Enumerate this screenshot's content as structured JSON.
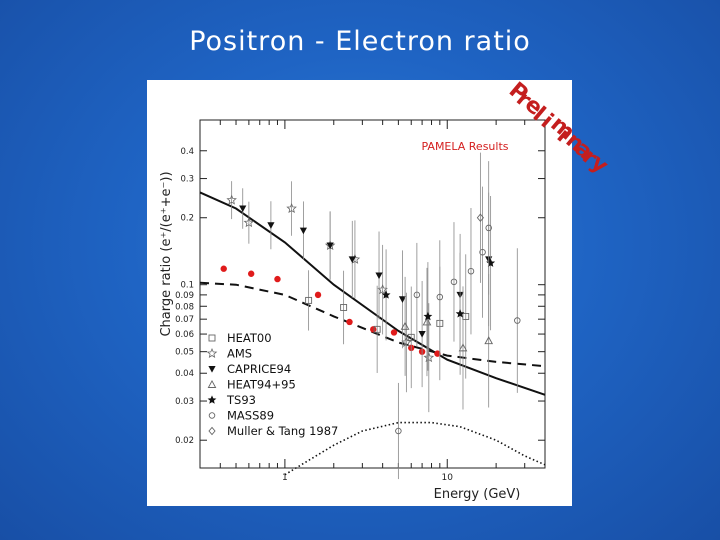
{
  "slide": {
    "title": "Positron - Electron ratio",
    "stamp_text": "Preliminary",
    "stamp_color": "#c41e1e",
    "background_color": "#1f64c4"
  },
  "chart_data": {
    "type": "scatter",
    "title": "PAMELA Results",
    "title_color": "#d42020",
    "xlabel": "Energy (GeV)",
    "ylabel": "Charge ratio (e⁺/(e⁺+e⁻))",
    "xscale": "log",
    "yscale": "log",
    "xlim": [
      0.3,
      40
    ],
    "ylim": [
      0.015,
      0.55
    ],
    "x_ticks": [
      {
        "value": 1,
        "label": "1"
      },
      {
        "value": 10,
        "label": "10"
      }
    ],
    "y_ticks": [
      {
        "value": 0.02,
        "label": "0.02"
      },
      {
        "value": 0.03,
        "label": "0.03"
      },
      {
        "value": 0.04,
        "label": "0.04"
      },
      {
        "value": 0.05,
        "label": "0.05"
      },
      {
        "value": 0.06,
        "label": "0.06"
      },
      {
        "value": 0.07,
        "label": "0.07"
      },
      {
        "value": 0.08,
        "label": "0.08"
      },
      {
        "value": 0.09,
        "label": "0.09"
      },
      {
        "value": 0.1,
        "label": "0.1"
      },
      {
        "value": 0.2,
        "label": "0.2"
      },
      {
        "value": 0.3,
        "label": "0.3"
      },
      {
        "value": 0.4,
        "label": "0.4"
      }
    ],
    "grid": false,
    "legend_position": "bottom-left",
    "series": [
      {
        "name": "PAMELA",
        "marker": "dot",
        "color": "#e01b1b",
        "x": [
          0.42,
          0.62,
          0.9,
          1.6,
          2.5,
          3.5,
          4.7,
          6.0,
          7.0,
          8.7
        ],
        "y": [
          0.118,
          0.112,
          0.106,
          0.09,
          0.068,
          0.063,
          0.061,
          0.052,
          0.05,
          0.049
        ]
      },
      {
        "name": "HEAT00",
        "marker": "square",
        "color": "#666666",
        "x": [
          1.4,
          2.3,
          3.7,
          6.0,
          9.0,
          13.0
        ],
        "y": [
          0.085,
          0.079,
          0.063,
          0.058,
          0.067,
          0.072
        ]
      },
      {
        "name": "AMS",
        "marker": "star-open",
        "color": "#666666",
        "x": [
          0.47,
          0.6,
          1.1,
          1.9,
          2.7,
          4.0,
          5.6,
          7.7
        ],
        "y": [
          0.24,
          0.19,
          0.22,
          0.15,
          0.13,
          0.095,
          0.055,
          0.047
        ]
      },
      {
        "name": "CAPRICE94",
        "marker": "triangle-down",
        "color": "#111111",
        "x": [
          0.55,
          0.82,
          1.3,
          1.9,
          2.6,
          3.8,
          5.3,
          7.0,
          12.0,
          18.0
        ],
        "y": [
          0.22,
          0.185,
          0.175,
          0.15,
          0.13,
          0.11,
          0.086,
          0.06,
          0.09,
          0.13
        ]
      },
      {
        "name": "HEAT94+95",
        "marker": "triangle-up",
        "color": "#666666",
        "x": [
          5.5,
          7.5,
          12.5,
          18.0
        ],
        "y": [
          0.065,
          0.068,
          0.052,
          0.056
        ]
      },
      {
        "name": "TS93",
        "marker": "star",
        "color": "#111111",
        "x": [
          4.2,
          7.6,
          12.0,
          18.5
        ],
        "y": [
          0.09,
          0.072,
          0.074,
          0.125
        ]
      },
      {
        "name": "MASS89",
        "marker": "circle-open",
        "color": "#666666",
        "x": [
          5.0,
          6.5,
          9.0,
          11.0,
          14.0,
          16.5,
          18.0,
          27.0
        ],
        "y": [
          0.022,
          0.09,
          0.088,
          0.103,
          0.115,
          0.14,
          0.18,
          0.069
        ]
      },
      {
        "name": "Muller & Tang 1987",
        "marker": "diamond-open",
        "color": "#666666",
        "x": [
          16.0
        ],
        "y": [
          0.2
        ]
      }
    ],
    "models": [
      {
        "name": "solid",
        "style": "solid",
        "x": [
          0.3,
          0.5,
          1,
          2,
          5,
          10,
          20,
          40
        ],
        "y": [
          0.26,
          0.22,
          0.155,
          0.1,
          0.062,
          0.046,
          0.038,
          0.032
        ]
      },
      {
        "name": "dashed",
        "style": "dashed",
        "x": [
          0.3,
          0.5,
          1,
          2,
          5,
          10,
          20,
          40
        ],
        "y": [
          0.102,
          0.1,
          0.09,
          0.072,
          0.055,
          0.048,
          0.045,
          0.043
        ]
      },
      {
        "name": "dotted",
        "style": "dotted",
        "x": [
          1.0,
          2.0,
          3.0,
          5.0,
          8.0,
          12.0,
          20.0,
          30.0,
          40.0
        ],
        "y": [
          0.014,
          0.019,
          0.022,
          0.024,
          0.024,
          0.023,
          0.02,
          0.017,
          0.0155
        ]
      }
    ]
  }
}
